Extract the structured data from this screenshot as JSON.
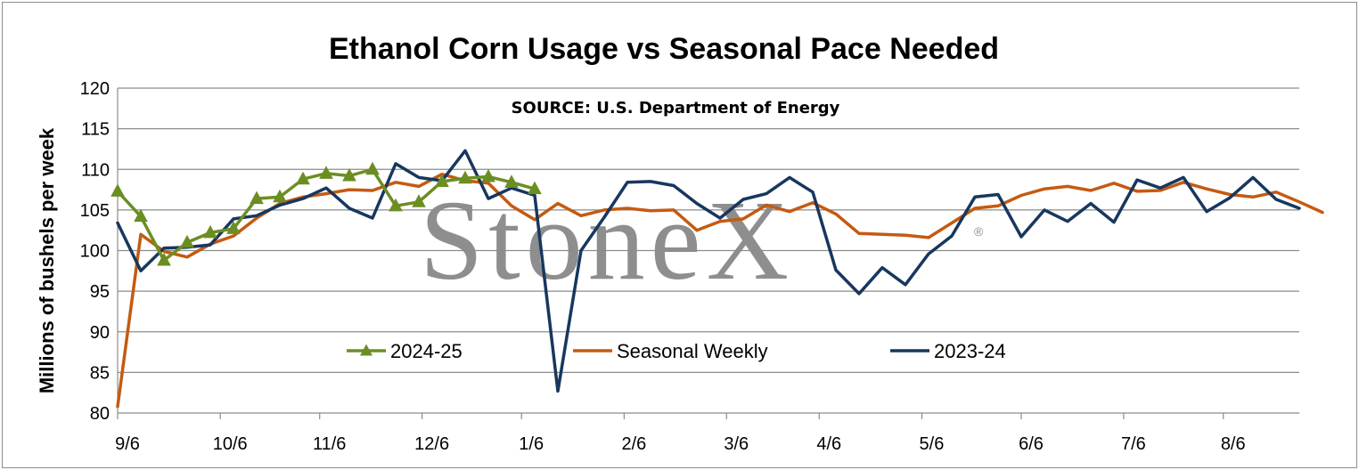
{
  "chart_data": {
    "type": "line",
    "title": "Ethanol Corn Usage vs Seasonal Pace Needed",
    "subtitle": "SOURCE: U.S. Department of Energy",
    "ylabel": "Millions of bushels per week",
    "xlabel": "",
    "ylim": [
      80,
      120
    ],
    "ytick_step": 5,
    "yticks": [
      "80",
      "85",
      "90",
      "95",
      "100",
      "105",
      "110",
      "115",
      "120"
    ],
    "x_range": [
      0,
      51
    ],
    "xtick_weeks": [
      0,
      4.43,
      8.72,
      13.14,
      17.43,
      21.86,
      26.28,
      30.28,
      34.71,
      39.0,
      43.42,
      47.72
    ],
    "xtick_labels": [
      "9/6",
      "10/6",
      "11/6",
      "12/6",
      "1/6",
      "2/6",
      "3/6",
      "4/6",
      "5/6",
      "6/6",
      "7/6",
      "8/6"
    ],
    "grid": "horizontal",
    "legend_position": "bottom-center",
    "watermark": "StoneX",
    "series": [
      {
        "name": "2024-25",
        "color": "#6b8e23",
        "marker": "triangle",
        "values": [
          107.3,
          104.2,
          98.8,
          101.0,
          102.2,
          102.7,
          106.4,
          106.6,
          108.8,
          109.5,
          109.2,
          110.0,
          105.5,
          106.0,
          108.5,
          108.9,
          109.1,
          108.4,
          107.6
        ]
      },
      {
        "name": "Seasonal Weekly",
        "color": "#c55a11",
        "marker": "none",
        "values": [
          80.8,
          102.0,
          99.9,
          99.2,
          100.8,
          101.8,
          104.0,
          105.8,
          106.6,
          107.0,
          107.5,
          107.4,
          108.4,
          107.9,
          109.4,
          108.6,
          108.3,
          105.5,
          103.8,
          105.8,
          104.3,
          105.0,
          105.2,
          104.9,
          105.0,
          102.5,
          103.6,
          103.9,
          105.6,
          104.8,
          105.9,
          104.5,
          102.1,
          102.0,
          101.9,
          101.6,
          103.4,
          105.2,
          105.5,
          106.8,
          107.6,
          107.9,
          107.4,
          108.3,
          107.3,
          107.4,
          108.4,
          107.6,
          106.9,
          106.6,
          107.2,
          106.0,
          104.7
        ]
      },
      {
        "name": "2023-24",
        "color": "#17375e",
        "marker": "none",
        "values": [
          103.4,
          97.5,
          100.3,
          100.4,
          100.7,
          103.9,
          104.3,
          105.6,
          106.4,
          107.7,
          105.2,
          104.0,
          110.7,
          109.0,
          108.6,
          112.3,
          106.4,
          107.7,
          106.8,
          82.7,
          100.0,
          104.1,
          108.4,
          108.5,
          108.0,
          105.8,
          104.0,
          106.3,
          107.0,
          109.0,
          107.2,
          97.6,
          94.7,
          97.9,
          95.8,
          99.6,
          101.8,
          106.6,
          106.9,
          101.7,
          105.0,
          103.6,
          105.8,
          103.5,
          108.7,
          107.7,
          109.0,
          104.8,
          106.5,
          109.0,
          106.3,
          105.2
        ]
      }
    ]
  }
}
